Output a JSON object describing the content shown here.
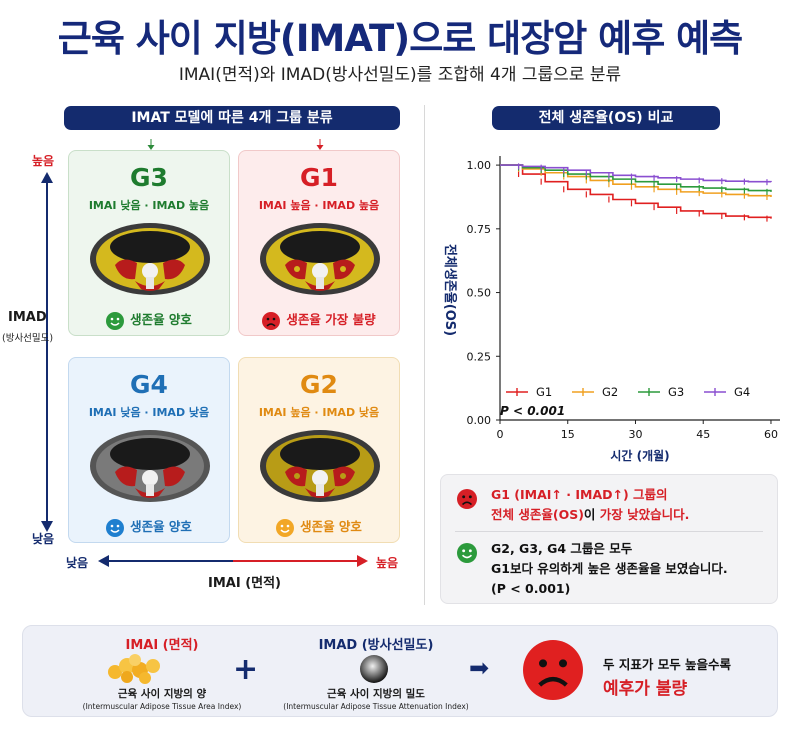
{
  "header": {
    "title": "근육 사이 지방(IMAT)으로 대장암 예후 예측",
    "subtitle": "IMAI(면적)와 IMAD(방사선밀도)를 조합해 4개 그룹으로 분류"
  },
  "left_panel": {
    "label": "IMAT 모델에 따른 4개 그룹 분류",
    "y_axis": {
      "name": "IMAD",
      "sub": "(방사선밀도)",
      "high": "높음",
      "low": "낮음"
    },
    "x_axis": {
      "name": "IMAI (면적)",
      "high": "높음",
      "low": "낮음"
    },
    "groups": {
      "g3": {
        "name": "G3",
        "desc": "IMAI 낮음 · IMAD 높음",
        "outcome": "생존율 양호",
        "color": "#1e7b2e"
      },
      "g1": {
        "name": "G1",
        "desc": "IMAI 높음 · IMAD 높음",
        "outcome": "생존율 가장 불량",
        "color": "#d61f26"
      },
      "g4": {
        "name": "G4",
        "desc": "IMAI 낮음 · IMAD 낮음",
        "outcome": "생존율 양호",
        "color": "#1f6fb5"
      },
      "g2": {
        "name": "G2",
        "desc": "IMAI 높음 · IMAD 낮음",
        "outcome": "생존율 양호",
        "color": "#e08a12"
      }
    }
  },
  "right_panel": {
    "label": "전체 생존율(OS) 비교",
    "p_value": "P < 0.001"
  },
  "chart_data": {
    "type": "line",
    "title": "",
    "xlabel": "시간 (개월)",
    "ylabel": "전체생존율(OS)",
    "xlim": [
      0,
      62
    ],
    "ylim": [
      0,
      1.02
    ],
    "x_ticks": [
      0,
      15,
      30,
      45,
      60
    ],
    "y_ticks": [
      "0.00",
      "0.25",
      "0.50",
      "0.75",
      "1.00"
    ],
    "legend_position": "bottom-left",
    "series": [
      {
        "name": "G1",
        "color": "#e02020",
        "x": [
          0,
          5,
          10,
          15,
          20,
          25,
          30,
          35,
          40,
          45,
          50,
          55,
          60
        ],
        "values": [
          1.0,
          0.965,
          0.935,
          0.905,
          0.885,
          0.865,
          0.85,
          0.835,
          0.82,
          0.81,
          0.8,
          0.795,
          0.79
        ]
      },
      {
        "name": "G2",
        "color": "#f0a020",
        "x": [
          0,
          5,
          10,
          15,
          20,
          25,
          30,
          35,
          40,
          45,
          50,
          55,
          60
        ],
        "values": [
          1.0,
          0.985,
          0.97,
          0.955,
          0.94,
          0.925,
          0.915,
          0.905,
          0.895,
          0.89,
          0.885,
          0.88,
          0.875
        ]
      },
      {
        "name": "G3",
        "color": "#2c9a3c",
        "x": [
          0,
          5,
          10,
          15,
          20,
          25,
          30,
          35,
          40,
          45,
          50,
          55,
          60
        ],
        "values": [
          1.0,
          0.99,
          0.98,
          0.965,
          0.955,
          0.945,
          0.935,
          0.925,
          0.915,
          0.91,
          0.905,
          0.9,
          0.895
        ]
      },
      {
        "name": "G4",
        "color": "#8a4fd0",
        "x": [
          0,
          5,
          10,
          15,
          20,
          25,
          30,
          35,
          40,
          45,
          50,
          55,
          60
        ],
        "values": [
          1.0,
          0.995,
          0.99,
          0.98,
          0.97,
          0.96,
          0.955,
          0.95,
          0.945,
          0.94,
          0.937,
          0.935,
          0.933
        ]
      }
    ]
  },
  "summary": {
    "line1": "G1 (IMAI↑ · IMAD↑) 그룹의",
    "line2a": "전체 생존율(OS)",
    "line2b": "이",
    "line2c": "가장 낮았습니다.",
    "line3": "G2, G3, G4 그룹은 모두",
    "line4": "G1보다 유의하게 높은 생존율을 보였습니다.",
    "line5": "(P < 0.001)"
  },
  "bottom": {
    "imai_title": "IMAI (면적)",
    "imai_desc": "근육 사이 지방의 양",
    "imai_en": "(Intermuscular Adipose Tissue Area Index)",
    "plus": "+",
    "imad_title": "IMAD (방사선밀도)",
    "imad_desc": "근육 사이 지방의 밀도",
    "imad_en": "(Intermuscular Adipose Tissue Attenuation Index)",
    "arrow": "➡",
    "conclusion_top": "두 지표가 모두 높을수록",
    "conclusion_main": "예후가 불량"
  },
  "icons": {
    "happy": "smile-face-icon",
    "sad": "sad-face-icon",
    "ct": "ct-scan-icon",
    "fat": "fat-cells-icon",
    "density": "density-gradient-icon"
  }
}
